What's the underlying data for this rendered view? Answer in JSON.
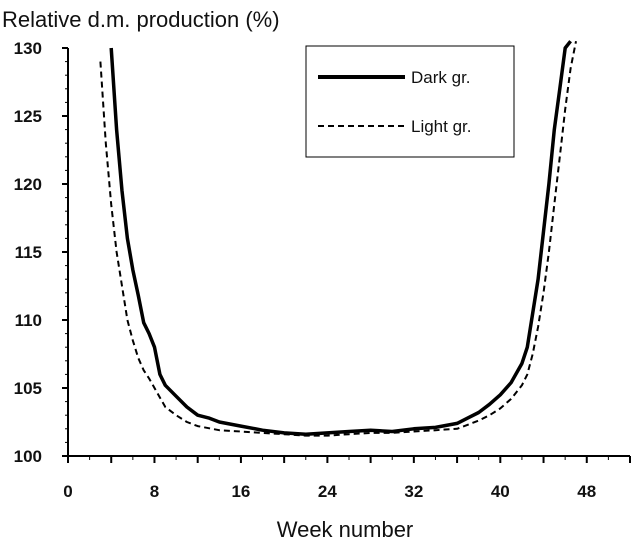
{
  "chart_data": {
    "type": "line",
    "title": "",
    "ylabel": "Relative d.m. production (%)",
    "xlabel": "Week number",
    "xlim": [
      0,
      52
    ],
    "ylim": [
      100,
      130
    ],
    "x_ticks": [
      0,
      8,
      16,
      24,
      32,
      40,
      48
    ],
    "y_ticks": [
      100,
      105,
      110,
      115,
      120,
      125,
      130
    ],
    "grid": false,
    "legend_position": "top-right",
    "series": [
      {
        "name": "Dark gr.",
        "style": "solid",
        "color": "#000000",
        "x": [
          4,
          4.5,
          5,
          5.5,
          6,
          6.5,
          7,
          7.5,
          8,
          8.5,
          9,
          10,
          11,
          12,
          13,
          14,
          16,
          18,
          20,
          22,
          24,
          26,
          28,
          30,
          32,
          34,
          36,
          37,
          38,
          39,
          40,
          41,
          42,
          42.5,
          43,
          43.5,
          44,
          44.5,
          45,
          45.5,
          46,
          46.5
        ],
        "y": [
          130,
          124,
          119.5,
          116,
          113.7,
          111.8,
          109.8,
          109,
          108,
          106,
          105.2,
          104.4,
          103.6,
          103,
          102.8,
          102.5,
          102.2,
          101.9,
          101.7,
          101.6,
          101.7,
          101.8,
          101.9,
          101.8,
          102,
          102.1,
          102.4,
          102.8,
          103.2,
          103.8,
          104.5,
          105.4,
          106.8,
          108,
          110.5,
          113,
          116.5,
          120,
          124,
          127,
          130,
          130.5
        ]
      },
      {
        "name": "Light gr.",
        "style": "dashed",
        "color": "#000000",
        "x": [
          3,
          3.5,
          4,
          4.5,
          5,
          5.5,
          6,
          6.5,
          7,
          7.5,
          8,
          9,
          10,
          11,
          12,
          14,
          16,
          18,
          20,
          22,
          24,
          26,
          28,
          30,
          32,
          34,
          36,
          38,
          39,
          40,
          41,
          42,
          42.5,
          43,
          43.5,
          44,
          44.5,
          45,
          45.5,
          46,
          46.5,
          47
        ],
        "y": [
          129,
          123,
          118.5,
          115,
          112.5,
          110,
          108.5,
          107.2,
          106.3,
          105.7,
          105,
          103.6,
          103,
          102.5,
          102.2,
          101.9,
          101.8,
          101.7,
          101.6,
          101.5,
          101.5,
          101.6,
          101.7,
          101.7,
          101.8,
          101.9,
          102,
          102.6,
          103,
          103.5,
          104.2,
          105.2,
          106,
          107.5,
          109.5,
          112,
          115,
          118.5,
          122,
          125.5,
          128.5,
          130.5
        ]
      }
    ]
  }
}
